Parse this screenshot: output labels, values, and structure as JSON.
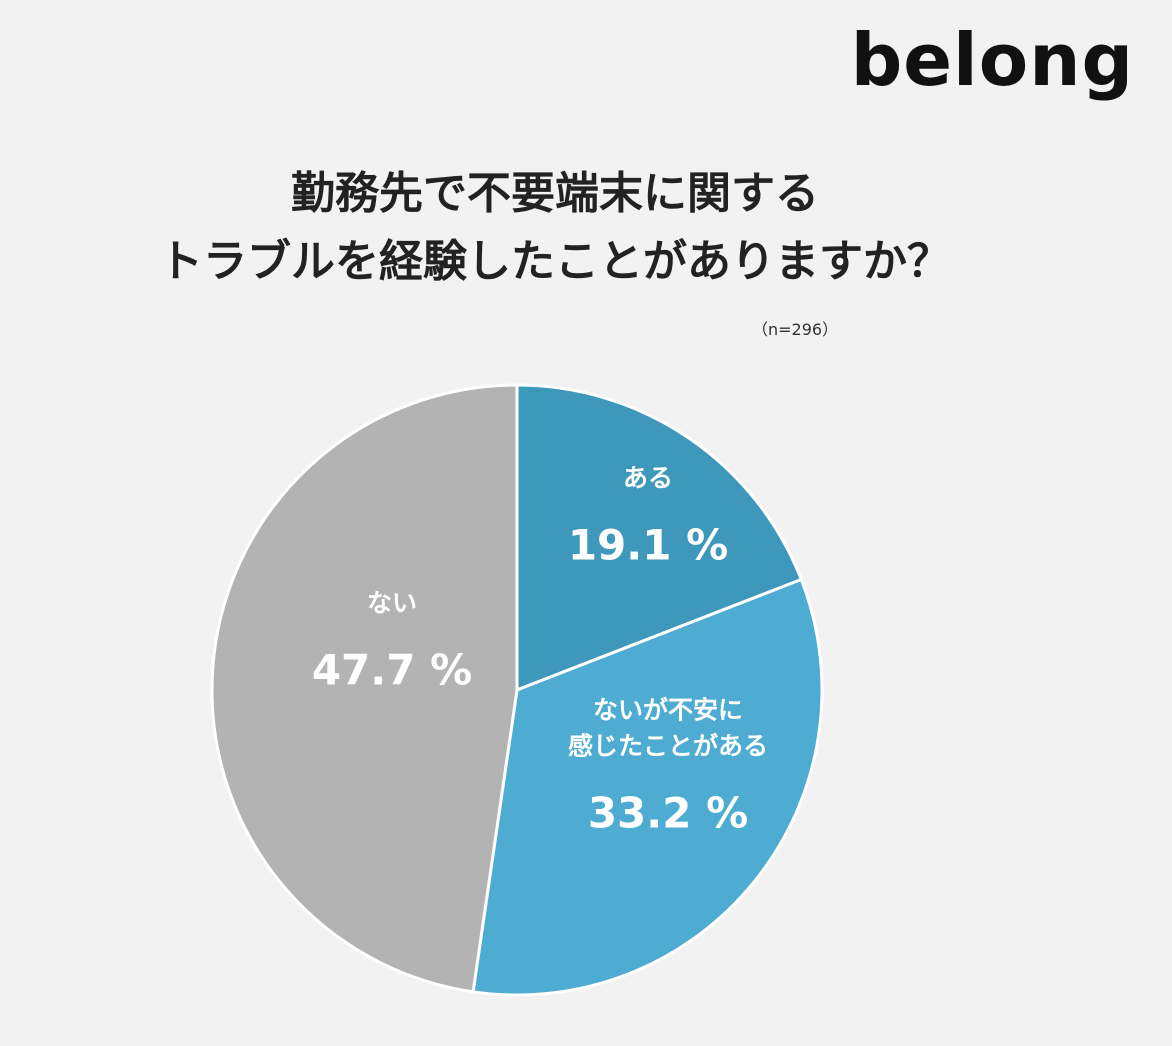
{
  "logo": "belong",
  "chart_data": {
    "type": "pie",
    "title": "勤務先で不要端末に関する\nトラブルを経験したことがありますか？",
    "note": "（n=296）",
    "categories": [
      "ある",
      "ないが不安に\n感じたことがある",
      "ない"
    ],
    "values": [
      19.1,
      33.2,
      47.7
    ],
    "value_labels": [
      "19.1 %",
      "33.2 %",
      "47.7 %"
    ],
    "colors": [
      "#3e98bc",
      "#4eabd1",
      "#b3b3b3"
    ]
  }
}
